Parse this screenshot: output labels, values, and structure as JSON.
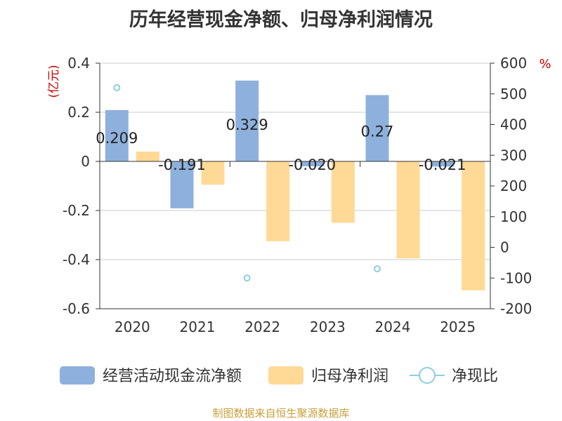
{
  "source_note": "制图数据来自恒生聚源数据库",
  "colors": {
    "operating_cash": "#8eb0dd",
    "net_profit": "#ffd995",
    "ratio": "#8ccfdc",
    "ylabel_left": "#cc0000",
    "ylabel_right": "#cc0000",
    "grid": "#cccccc",
    "axis": "#333333",
    "source": "#c8a03c"
  },
  "chart_data": {
    "type": "bar",
    "title": "历年经营现金净额、归母净利润情况",
    "categories": [
      "2020",
      "2021",
      "2022",
      "2023",
      "2024",
      "2025"
    ],
    "ylabel_left": "(亿元)",
    "ylabel_right": "%",
    "ylim_left": [
      -0.6,
      0.4
    ],
    "ylim_right": [
      -200,
      600
    ],
    "yticks_left": [
      "0.4",
      "0.2",
      "0",
      "-0.2",
      "-0.4",
      "-0.6"
    ],
    "yticks_right": [
      "600",
      "500",
      "400",
      "300",
      "200",
      "100",
      "0",
      "-100",
      "-200"
    ],
    "series": [
      {
        "name": "经营活动现金流净额",
        "kind": "bar",
        "axis": "left",
        "values": [
          0.209,
          -0.191,
          0.329,
          -0.02,
          0.27,
          -0.021
        ],
        "labels": [
          "0.209",
          "-0.191",
          "0.329",
          "-0.020",
          "0.27",
          "-0.021"
        ]
      },
      {
        "name": "归母净利润",
        "kind": "bar",
        "axis": "left",
        "values": [
          0.04,
          -0.095,
          -0.325,
          -0.25,
          -0.395,
          -0.525
        ]
      },
      {
        "name": "净现比",
        "kind": "scatter",
        "axis": "right",
        "values": [
          520,
          null,
          -100,
          null,
          -70,
          null
        ]
      }
    ]
  }
}
